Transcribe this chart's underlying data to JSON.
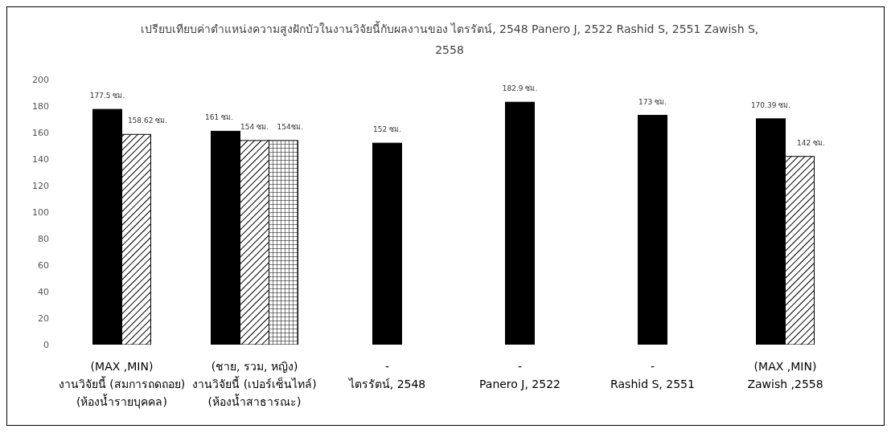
{
  "chart_data": {
    "type": "bar",
    "title": "เปรียบเทียบค่าตำแหน่งความสูงฝักบัวในงานวิจัยนี้กับผลงานของ ไตรรัตน์, 2548 Panero J, 2522 Rashid S, 2551 Zawish S, 2558",
    "categories": [
      "(MAX ,MIN)\nงานวิจัยนี้ (สมการถดถอย)\n(ห้องน้ำรายบุคคล)",
      "(ชาย, รวม, หญิง)\nงานวิจัยนี้ (เปอร์เซ็นไทล์)\n(ห้องน้ำสาธารณะ)",
      "-\nไตรรัตน์, 2548",
      "-\nPanero J, 2522",
      "-\nRashid S, 2551",
      "(MAX ,MIN)\nZawish ,2558"
    ],
    "series": [
      {
        "color": "#000000",
        "values": [
          177.5,
          161,
          152,
          182.9,
          173,
          170.39
        ],
        "value_labels": [
          "177.5 ซม.",
          "161 ซม.",
          "152 ซม.",
          "182.9 ซม.",
          "173 ซม.",
          "170.39 ซม."
        ]
      },
      {
        "color": "#000000",
        "values": [
          158.62,
          154,
          null,
          null,
          null,
          142
        ],
        "value_labels": [
          "158.62 ซม.",
          "154 ซม.",
          null,
          null,
          null,
          "142 ซม."
        ]
      },
      {
        "color": "#000000",
        "values": [
          null,
          154,
          null,
          null,
          null,
          null
        ],
        "value_labels": [
          null,
          "154ซม.",
          null,
          null,
          null,
          null
        ]
      }
    ],
    "ylim": [
      0,
      200
    ],
    "yticks": [
      0,
      20,
      40,
      60,
      80,
      100,
      120,
      140,
      160,
      180,
      200
    ],
    "grid": false,
    "legend": false
  }
}
